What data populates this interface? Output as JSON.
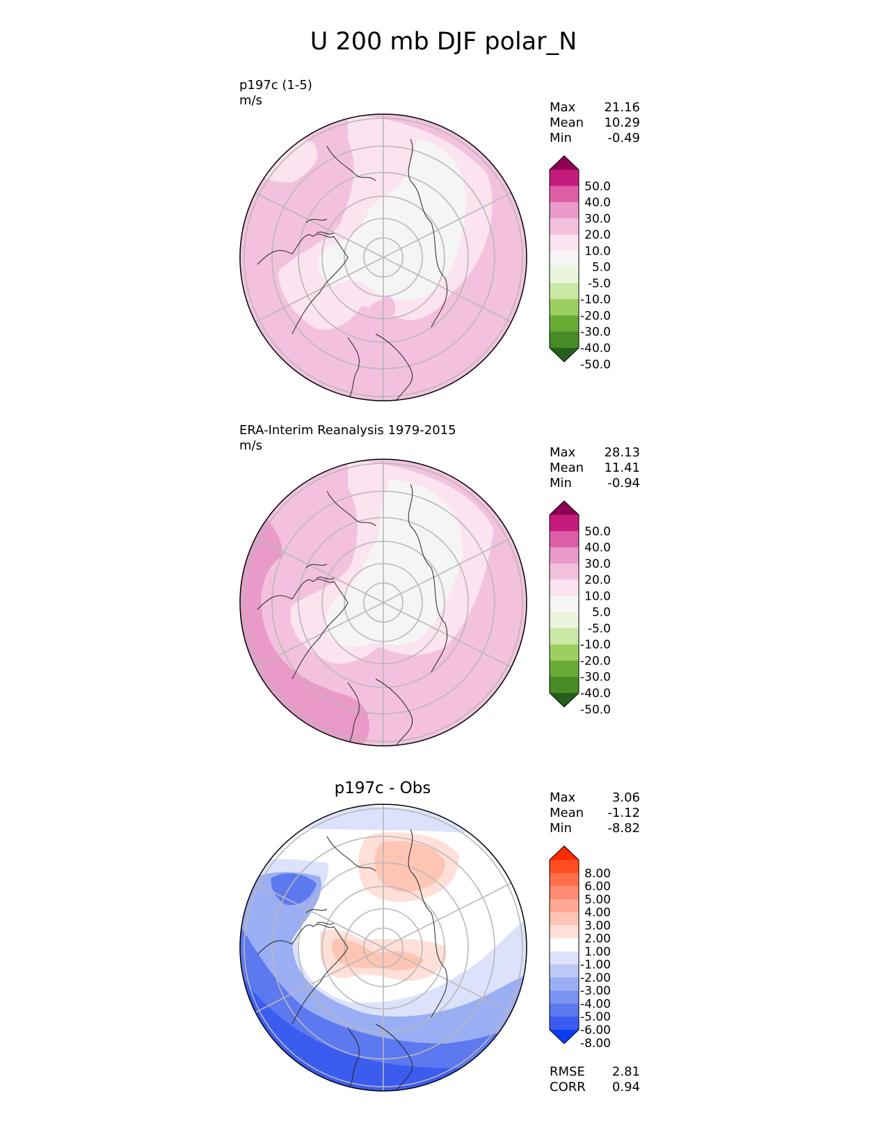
{
  "figure_title": "U 200 mb DJF polar_N",
  "panels": [
    {
      "title_line1": "p197c (1-5)",
      "title_line2": "m/s",
      "stats": [
        {
          "label": "Max",
          "value": "21.16"
        },
        {
          "label": "Mean",
          "value": "10.29"
        },
        {
          "label": "Min",
          "value": "-0.49"
        }
      ]
    },
    {
      "title_line1": "ERA-Interim Reanalysis 1979-2015",
      "title_line2": "m/s",
      "stats": [
        {
          "label": "Max",
          "value": "28.13"
        },
        {
          "label": "Mean",
          "value": "11.41"
        },
        {
          "label": "Min",
          "value": "-0.94"
        }
      ]
    },
    {
      "title_center": "p197c - Obs",
      "stats": [
        {
          "label": "Max",
          "value": "3.06"
        },
        {
          "label": "Mean",
          "value": "-1.12"
        },
        {
          "label": "Min",
          "value": "-8.82"
        }
      ],
      "metrics": [
        {
          "label": "RMSE",
          "value": "2.81"
        },
        {
          "label": "CORR",
          "value": "0.94"
        }
      ]
    }
  ],
  "colorbars": {
    "field": {
      "ticks": [
        "50.0",
        "40.0",
        "30.0",
        "20.0",
        "10.0",
        "5.0",
        "-5.0",
        "-10.0",
        "-20.0",
        "-30.0",
        "-40.0",
        "-50.0"
      ],
      "colors": [
        "#8e0152",
        "#c51b7d",
        "#de5ea6",
        "#e99ac8",
        "#f3c1de",
        "#fbe3ef",
        "#f5f5f5",
        "#eaf5dc",
        "#cbe9a6",
        "#9ccf62",
        "#6aab36",
        "#468b25",
        "#24601b"
      ]
    },
    "diff": {
      "ticks": [
        "8.00",
        "6.00",
        "5.00",
        "4.00",
        "3.00",
        "2.00",
        "1.00",
        "-1.00",
        "-2.00",
        "-3.00",
        "-4.00",
        "-5.00",
        "-6.00",
        "-8.00"
      ],
      "colors": [
        "#ff2a00",
        "#ff4d1f",
        "#ff6f4c",
        "#ff8c72",
        "#ffa994",
        "#ffc5b4",
        "#ffe0d8",
        "#ffffff",
        "#dce2fb",
        "#bccaf8",
        "#9aaef4",
        "#7c94f1",
        "#5d79ef",
        "#3b5cef",
        "#0a3cf5"
      ]
    }
  },
  "chart_data": [
    {
      "type": "heatmap",
      "title": "p197c (1-5)",
      "subtitle": "m/s",
      "projection": "polar stereographic (north)",
      "levels": [
        -50,
        -40,
        -30,
        -20,
        -10,
        -5,
        5,
        10,
        20,
        30,
        40,
        50
      ],
      "max": 21.16,
      "mean": 10.29,
      "min": -0.49,
      "regions": [
        {
          "value_band": "10-20",
          "fill": "#f3c1de"
        },
        {
          "value_band": "5-10",
          "fill": "#fbe3ef"
        },
        {
          "value_band": "-5-5",
          "fill": "#f5f5f5"
        }
      ]
    },
    {
      "type": "heatmap",
      "title": "ERA-Interim Reanalysis 1979-2015",
      "subtitle": "m/s",
      "projection": "polar stereographic (north)",
      "levels": [
        -50,
        -40,
        -30,
        -20,
        -10,
        -5,
        5,
        10,
        20,
        30,
        40,
        50
      ],
      "max": 28.13,
      "mean": 11.41,
      "min": -0.94,
      "regions": [
        {
          "value_band": "20-30",
          "fill": "#e99ac8"
        },
        {
          "value_band": "10-20",
          "fill": "#f3c1de"
        },
        {
          "value_band": "5-10",
          "fill": "#fbe3ef"
        },
        {
          "value_band": "-5-5",
          "fill": "#f5f5f5"
        }
      ]
    },
    {
      "type": "heatmap",
      "title": "p197c - Obs",
      "projection": "polar stereographic (north)",
      "levels": [
        -8,
        -6,
        -5,
        -4,
        -3,
        -2,
        -1,
        1,
        2,
        3,
        4,
        5,
        6,
        8
      ],
      "max": 3.06,
      "mean": -1.12,
      "min": -8.82,
      "rmse": 2.81,
      "corr": 0.94,
      "regions": [
        {
          "value_band": "2-3",
          "fill": "#ffc5b4"
        },
        {
          "value_band": "1-2",
          "fill": "#ffe0d8"
        },
        {
          "value_band": "-1-1",
          "fill": "#ffffff"
        },
        {
          "value_band": "-2--1",
          "fill": "#dce2fb"
        },
        {
          "value_band": "-4--3",
          "fill": "#9aaef4"
        },
        {
          "value_band": "-6--5",
          "fill": "#5d79ef"
        },
        {
          "value_band": "-8--6",
          "fill": "#3b5cef"
        }
      ]
    }
  ]
}
